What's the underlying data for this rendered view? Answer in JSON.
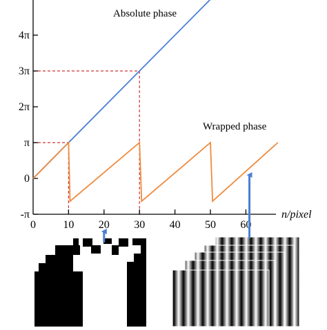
{
  "chart_data": {
    "type": "line",
    "xlabel": "n/pixel",
    "ylabel": "",
    "xlim": [
      0,
      70
    ],
    "ylim": [
      -3.14159,
      15.9
    ],
    "x_ticks": [
      {
        "value": 0,
        "label": "0"
      },
      {
        "value": 10,
        "label": "10"
      },
      {
        "value": 20,
        "label": "20"
      },
      {
        "value": 30,
        "label": "30"
      },
      {
        "value": 40,
        "label": "40"
      },
      {
        "value": 50,
        "label": "50"
      },
      {
        "value": 60,
        "label": "60"
      }
    ],
    "y_ticks": [
      {
        "value": -3.14159,
        "label": "-π"
      },
      {
        "value": 0,
        "label": "0"
      },
      {
        "value": 3.14159,
        "label": "π"
      },
      {
        "value": 6.28318,
        "label": "2π"
      },
      {
        "value": 9.42478,
        "label": "3π"
      },
      {
        "value": 12.56637,
        "label": "4π"
      }
    ],
    "series": [
      {
        "name": "Absolute phase",
        "color": "#4a7fd4",
        "x": [
          0,
          69
        ],
        "y": [
          0,
          21.68
        ]
      },
      {
        "name": "Wrapped phase",
        "color": "#ef8a3c",
        "x": [
          0,
          10,
          10,
          10.4,
          30,
          30,
          30.6,
          50,
          50,
          50.6,
          69
        ],
        "y": [
          0,
          3.14159,
          3.14159,
          -2.0,
          3.14159,
          3.14159,
          -2.0,
          3.14159,
          3.14159,
          -2.0,
          3.14159
        ]
      }
    ],
    "reference_lines": {
      "color": "#cc3333",
      "points": [
        {
          "x": 10,
          "y": 3.14159
        },
        {
          "x": 30,
          "y": 9.42478
        }
      ]
    },
    "arrow_color": "#4a7fd4",
    "arrows": [
      {
        "x": 20
      },
      {
        "x": 61
      }
    ]
  }
}
